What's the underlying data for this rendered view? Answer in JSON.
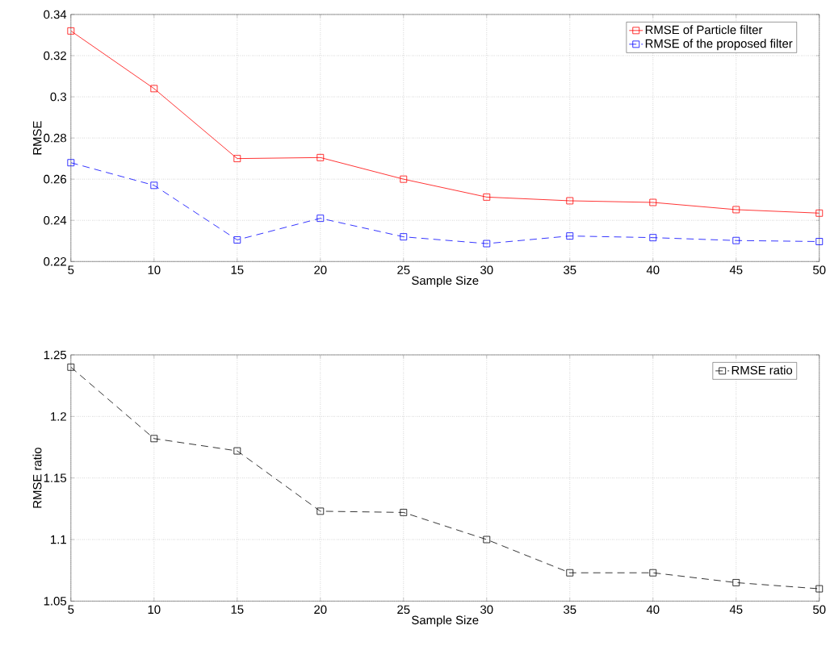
{
  "chart_data": [
    {
      "type": "line",
      "xlabel": "Sample Size",
      "ylabel": "RMSE",
      "x": [
        5,
        10,
        15,
        20,
        25,
        30,
        35,
        40,
        45,
        50
      ],
      "series": [
        {
          "name": "RMSE of Particle filter",
          "color": "#ff0000",
          "line_style": "solid",
          "values": [
            0.332,
            0.304,
            0.27,
            0.2705,
            0.26,
            0.2513,
            0.2495,
            0.2487,
            0.2452,
            0.2435
          ]
        },
        {
          "name": "RMSE of  the proposed filter",
          "color": "#0000ff",
          "line_style": "dashed",
          "values": [
            0.268,
            0.257,
            0.2305,
            0.241,
            0.232,
            0.2287,
            0.2324,
            0.2316,
            0.2302,
            0.2297
          ]
        }
      ],
      "marker": "square",
      "xlim": [
        5,
        50
      ],
      "ylim": [
        0.22,
        0.34
      ],
      "xticks": [
        5,
        10,
        15,
        20,
        25,
        30,
        35,
        40,
        45,
        50
      ],
      "yticks": [
        0.22,
        0.24,
        0.26,
        0.28,
        0.3,
        0.32,
        0.34
      ],
      "grid": true,
      "legend": "top right"
    },
    {
      "type": "line",
      "xlabel": "Sample Size",
      "ylabel": "RMSE ratio",
      "x": [
        5,
        10,
        15,
        20,
        25,
        30,
        35,
        40,
        45,
        50
      ],
      "series": [
        {
          "name": "RMSE ratio",
          "color": "#000000",
          "line_style": "dashed",
          "values": [
            1.24,
            1.182,
            1.172,
            1.123,
            1.122,
            1.1,
            1.073,
            1.073,
            1.065,
            1.06
          ]
        }
      ],
      "marker": "square",
      "xlim": [
        5,
        50
      ],
      "ylim": [
        1.05,
        1.25
      ],
      "xticks": [
        5,
        10,
        15,
        20,
        25,
        30,
        35,
        40,
        45,
        50
      ],
      "yticks": [
        1.05,
        1.1,
        1.15,
        1.2,
        1.25
      ],
      "grid": true,
      "legend": "top right"
    }
  ]
}
